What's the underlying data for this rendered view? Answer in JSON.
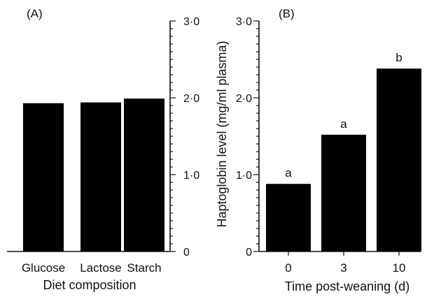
{
  "colors": {
    "bar": "#000000",
    "axis": "#111111",
    "background": "#ffffff"
  },
  "ylabel": "Haptoglobin level (mg/ml plasma)",
  "chart_data": [
    {
      "type": "bar",
      "panel": "(A)",
      "categories": [
        "Glucose",
        "Lactose",
        "Starch"
      ],
      "values": [
        1.93,
        1.94,
        1.99
      ],
      "annotations": [
        "",
        "",
        ""
      ],
      "xlabel": "Diet composition",
      "ylabel": "",
      "ylim": [
        0,
        3.0
      ],
      "yticks": [
        "0",
        "1·0",
        "2·0",
        "3·0"
      ],
      "y_axis_side": "right",
      "grid": false
    },
    {
      "type": "bar",
      "panel": "(B)",
      "categories": [
        "0",
        "3",
        "10"
      ],
      "values": [
        0.88,
        1.52,
        2.38
      ],
      "annotations": [
        "a",
        "a",
        "b"
      ],
      "xlabel": "Time post-weaning (d)",
      "ylabel": "Haptoglobin level (mg/ml plasma)",
      "ylim": [
        0,
        3.0
      ],
      "yticks": [
        "0",
        "1·0",
        "2·0",
        "3·0"
      ],
      "y_axis_side": "left",
      "grid": false
    }
  ]
}
